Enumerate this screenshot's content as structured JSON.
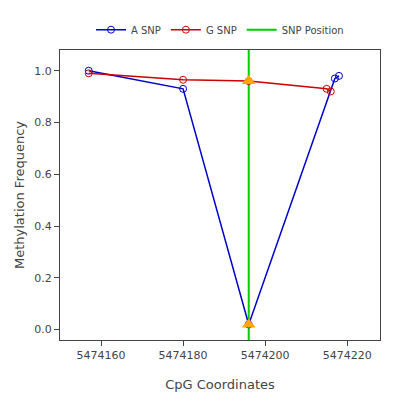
{
  "chart_data": {
    "type": "line",
    "xlabel": "CpG Coordinates",
    "ylabel": "Methylation Frequency",
    "series": [
      {
        "name": "A SNP",
        "type": "line",
        "marker": "circle-open",
        "color": "#0000CC",
        "x": [
          5474157,
          5474180,
          5474196,
          5474217,
          5474218
        ],
        "values": [
          1.0,
          0.93,
          0.02,
          0.97,
          0.98
        ]
      },
      {
        "name": "G SNP",
        "type": "line",
        "marker": "circle-open",
        "color": "#CC0000",
        "x": [
          5474157,
          5474180,
          5474196,
          5474215,
          5474216
        ],
        "values": [
          0.99,
          0.965,
          0.96,
          0.93,
          0.92
        ]
      },
      {
        "type": "scatter",
        "marker": "triangle-up",
        "color": "orange",
        "x": [
          5474196,
          5474196
        ],
        "values": [
          0.96,
          0.02
        ]
      },
      {
        "name": "SNP Position",
        "type": "vline",
        "color": "#00CC00",
        "x": [
          5474196
        ]
      }
    ],
    "xlim": [
      5474150,
      5474228
    ],
    "xticks": [
      5474160,
      5474180,
      5474200,
      5474220
    ],
    "ylim": [
      -0.04,
      1.08
    ],
    "yticks": [
      {
        "value": 0.0,
        "label": "0.0"
      },
      0.2,
      0.4,
      0.6,
      0.8,
      {
        "value": 1.0,
        "label": "1.0"
      }
    ],
    "grid": false,
    "legend": "top"
  }
}
